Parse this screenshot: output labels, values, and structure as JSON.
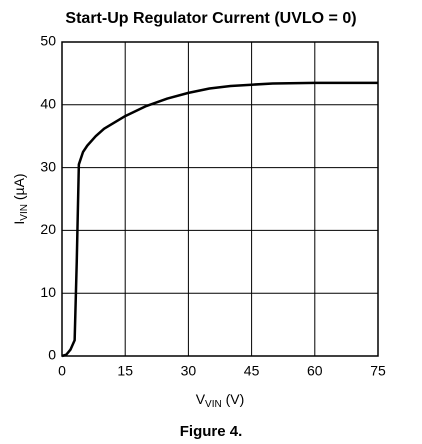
{
  "chart_data": {
    "type": "line",
    "title": "Start-Up Regulator Current (UVLO = 0)",
    "xlabel": {
      "main": "V",
      "sub": "VIN",
      "rest": " (V)"
    },
    "ylabel": {
      "main": "I",
      "sub": "VIN",
      "rest": " (µA)"
    },
    "caption": "Figure 4.",
    "x": [
      0,
      1,
      2,
      3,
      3.5,
      4,
      5,
      6,
      8,
      10,
      15,
      20,
      25,
      30,
      35,
      40,
      45,
      50,
      60,
      75
    ],
    "series": [
      {
        "name": "IVIN",
        "color": "#000000",
        "values": [
          0,
          0.2,
          1,
          2.5,
          15,
          30.5,
          32.5,
          33.5,
          35,
          36.2,
          38.2,
          39.8,
          41,
          41.9,
          42.6,
          43,
          43.2,
          43.4,
          43.5,
          43.5
        ]
      }
    ],
    "xlim": [
      0,
      75
    ],
    "xticks": [
      0,
      15,
      30,
      45,
      60,
      75
    ],
    "ylim": [
      0,
      50
    ],
    "yticks": [
      0,
      10,
      20,
      30,
      40,
      50
    ],
    "grid": true
  }
}
